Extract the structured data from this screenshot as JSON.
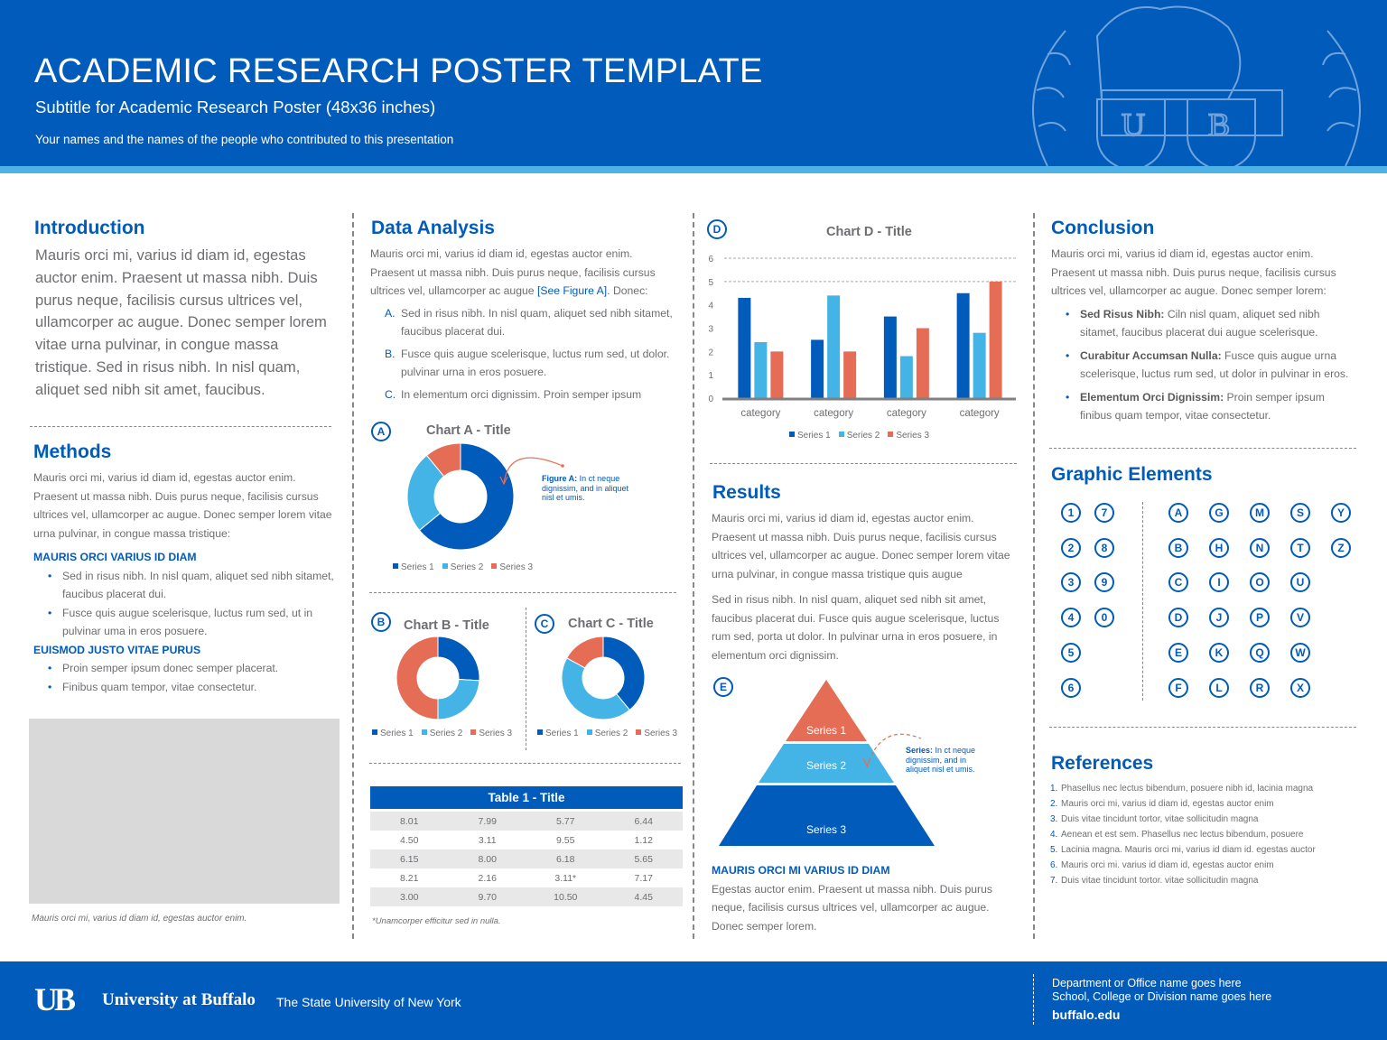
{
  "header": {
    "title": "ACADEMIC RESEARCH POSTER TEMPLATE",
    "subtitle": "Subtitle for Academic Research Poster (48x36 inches)",
    "authors": "Your names and the names of the people who contributed to this presentation"
  },
  "colors": {
    "primary": "#005bbb",
    "light_blue": "#43b4e5",
    "coral": "#e56d55",
    "gray_text": "#6d6e71",
    "table_stripe": "#e8e8e8"
  },
  "introduction": {
    "heading": "Introduction",
    "text": "Mauris orci mi, varius id diam id, egestas auctor enim. Praesent ut massa nibh. Duis purus neque, facilisis cursus ultrices vel, ullamcorper ac augue. Donec semper lorem vitae urna pulvinar, in congue massa tristique. Sed in risus nibh. In nisl quam, aliquet sed nibh sit amet, faucibus."
  },
  "methods": {
    "heading": "Methods",
    "text": "Mauris orci mi, varius id diam id, egestas auctor enim. Praesent ut massa nibh. Duis purus neque, facilisis cursus ultrices vel, ullamcorper ac augue. Donec semper lorem vitae urna pulvinar, in congue massa tristique:",
    "sub1": "MAURIS ORCI VARIUS ID DIAM",
    "bullets1": [
      "Sed in risus nibh. In nisl quam, aliquet sed nibh sitamet, faucibus placerat dui.",
      "Fusce quis augue scelerisque, luctus rum sed, ut in pulvinar uma in eros posuere."
    ],
    "sub2": "EUISMOD JUSTO VITAE PURUS",
    "bullets2": [
      "Proin semper ipsum donec semper placerat.",
      "Finibus quam tempor, vitae consectetur."
    ],
    "image_caption": "Mauris orci mi, varius id diam id, egestas auctor enim."
  },
  "data_analysis": {
    "heading": "Data Analysis",
    "text_before": "Mauris orci mi, varius id diam id, egestas auctor enim. Praesent ut massa nibh. Duis purus neque, facilisis cursus ultrices vel, ullamcorper ac augue ",
    "link": "[See Figure A]",
    "text_after": ". Donec:",
    "items": [
      {
        "marker": "A.",
        "text": "Sed in risus nibh. In nisl quam, aliquet sed nibh sitamet, faucibus placerat dui."
      },
      {
        "marker": "B.",
        "text": "Fusce quis augue scelerisque, luctus rum sed, ut dolor. pulvinar urna in eros posuere."
      },
      {
        "marker": "C.",
        "text": "In elementum orci dignissim. Proin semper ipsum"
      }
    ],
    "figure_a_caption_bold": "Figure A:",
    "figure_a_caption": " In ct neque dignissim, and in aliquet nisl et umis.",
    "table": {
      "title": "Table 1 - Title",
      "rows": [
        [
          "8.01",
          "7.99",
          "5.77",
          "6.44"
        ],
        [
          "4.50",
          "3.11",
          "9.55",
          "1.12"
        ],
        [
          "6.15",
          "8.00",
          "6.18",
          "5.65"
        ],
        [
          "8.21",
          "2.16",
          "3.11*",
          "7.17"
        ],
        [
          "3.00",
          "9.70",
          "10.50",
          "4.45"
        ]
      ],
      "footnote": "*Unamcorper efficitur sed in nulla."
    }
  },
  "chart_data": [
    {
      "id": "A",
      "type": "pie",
      "donut": true,
      "title": "Chart A - Title",
      "categories": [
        "Series 1",
        "Series 2",
        "Series 3"
      ],
      "values": [
        8.2,
        3.2,
        1.4
      ],
      "legend": "bottom"
    },
    {
      "id": "B",
      "type": "pie",
      "donut": true,
      "title": "Chart B - Title",
      "categories": [
        "Series 1",
        "Series 2",
        "Series 3"
      ],
      "values": [
        2.6,
        2.4,
        5.0
      ],
      "legend": "bottom"
    },
    {
      "id": "C",
      "type": "pie",
      "donut": true,
      "title": "Chart C - Title",
      "categories": [
        "Series 1",
        "Series 2",
        "Series 3"
      ],
      "values": [
        3.9,
        4.4,
        1.7
      ],
      "legend": "bottom"
    },
    {
      "id": "D",
      "type": "bar",
      "title": "Chart D - Title",
      "categories": [
        "category",
        "category",
        "category",
        "category"
      ],
      "series": [
        {
          "name": "Series 1",
          "values": [
            4.3,
            2.5,
            3.5,
            4.5
          ]
        },
        {
          "name": "Series 2",
          "values": [
            2.4,
            4.4,
            1.8,
            2.8
          ]
        },
        {
          "name": "Series 3",
          "values": [
            2.0,
            2.0,
            3.0,
            5.0
          ]
        }
      ],
      "ylim": [
        0,
        6
      ],
      "yticks": [
        "0",
        "1",
        "2",
        "3",
        "4",
        "5",
        "6"
      ],
      "grid": true,
      "legend": "bottom"
    },
    {
      "id": "E",
      "type": "pyramid",
      "levels": [
        "Series 1",
        "Series 2",
        "Series 3"
      ]
    }
  ],
  "results": {
    "heading": "Results",
    "p1": "Mauris orci mi, varius id diam id, egestas auctor enim. Praesent ut massa nibh. Duis purus neque, facilisis cursus ultrices vel, ullamcorper ac augue. Donec semper lorem vitae urna pulvinar, in congue massa tristique quis augue",
    "p2": "Sed in risus nibh. In nisl quam, aliquet sed nibh sit amet, faucibus placerat dui. Fusce quis augue scelerisque, luctus rum sed, porta ut dolor. In pulvinar urna in eros posuere, in elementum orci dignissim.",
    "pyramid_caption_bold": "Series:",
    "pyramid_caption": " In ct neque dignissim, and in aliquet nisl et umis.",
    "sub": "MAURIS ORCI MI VARIUS ID DIAM",
    "p3": "Egestas auctor enim. Praesent ut massa nibh. Duis purus neque, facilisis cursus ultrices vel, ullamcorper ac augue. Donec semper lorem."
  },
  "conclusion": {
    "heading": "Conclusion",
    "text": "Mauris orci mi, varius id diam id, egestas auctor enim. Praesent ut massa nibh. Duis purus neque, facilisis cursus ultrices vel, ullamcorper ac augue. Donec semper lorem:",
    "bullets": [
      {
        "bold": "Sed Risus Nibh:",
        "text": " Ciln nisl quam, aliquet sed nibh sitamet, faucibus placerat dui augue scelerisque."
      },
      {
        "bold": "Curabitur Accumsan Nulla:",
        "text": " Fusce quis augue urna scelerisque, luctus rum sed, ut dolor in pulvinar in eros."
      },
      {
        "bold": "Elementum Orci Dignissim:",
        "text": " Proin semper ipsum finibus quam tempor, vitae consectetur."
      }
    ]
  },
  "graphic_elements": {
    "heading": "Graphic Elements",
    "numbers": [
      [
        "1",
        "2",
        "3",
        "4",
        "5",
        "6"
      ],
      [
        "7",
        "8",
        "9",
        "0"
      ]
    ],
    "letters": [
      [
        "A",
        "B",
        "C",
        "D",
        "E",
        "F"
      ],
      [
        "G",
        "H",
        "I",
        "J",
        "K",
        "L"
      ],
      [
        "M",
        "N",
        "O",
        "P",
        "Q",
        "R"
      ],
      [
        "S",
        "T",
        "U",
        "V",
        "W",
        "X"
      ],
      [
        "Y",
        "Z"
      ]
    ]
  },
  "references": {
    "heading": "References",
    "items": [
      {
        "n": "1.",
        "text": "Phasellus nec lectus bibendum, posuere nibh id, lacinia magna"
      },
      {
        "n": "2.",
        "text": "Mauris orci mi, varius id diam id, egestas auctor enim"
      },
      {
        "n": "3.",
        "text": "Duis vitae tincidunt tortor, vitae sollicitudin magna"
      },
      {
        "n": "4.",
        "text": "Aenean et est sem. Phasellus nec lectus bibendum, posuere"
      },
      {
        "n": "5.",
        "text": "Lacinia magna. Mauris orci mi, varius id diam id. egestas auctor"
      },
      {
        "n": "6.",
        "text": "Mauris orci mi. varius id diam id, egestas auctor enim"
      },
      {
        "n": "7.",
        "text": "Duis vitae tincidunt tortor. vitae sollicitudin magna"
      }
    ]
  },
  "footer": {
    "logo_text": "UB",
    "university": "University at Buffalo",
    "suny": "The State University of New York",
    "department": "Department or Office name goes here",
    "school": "School, College or Division name goes here",
    "website": "buffalo.edu"
  }
}
